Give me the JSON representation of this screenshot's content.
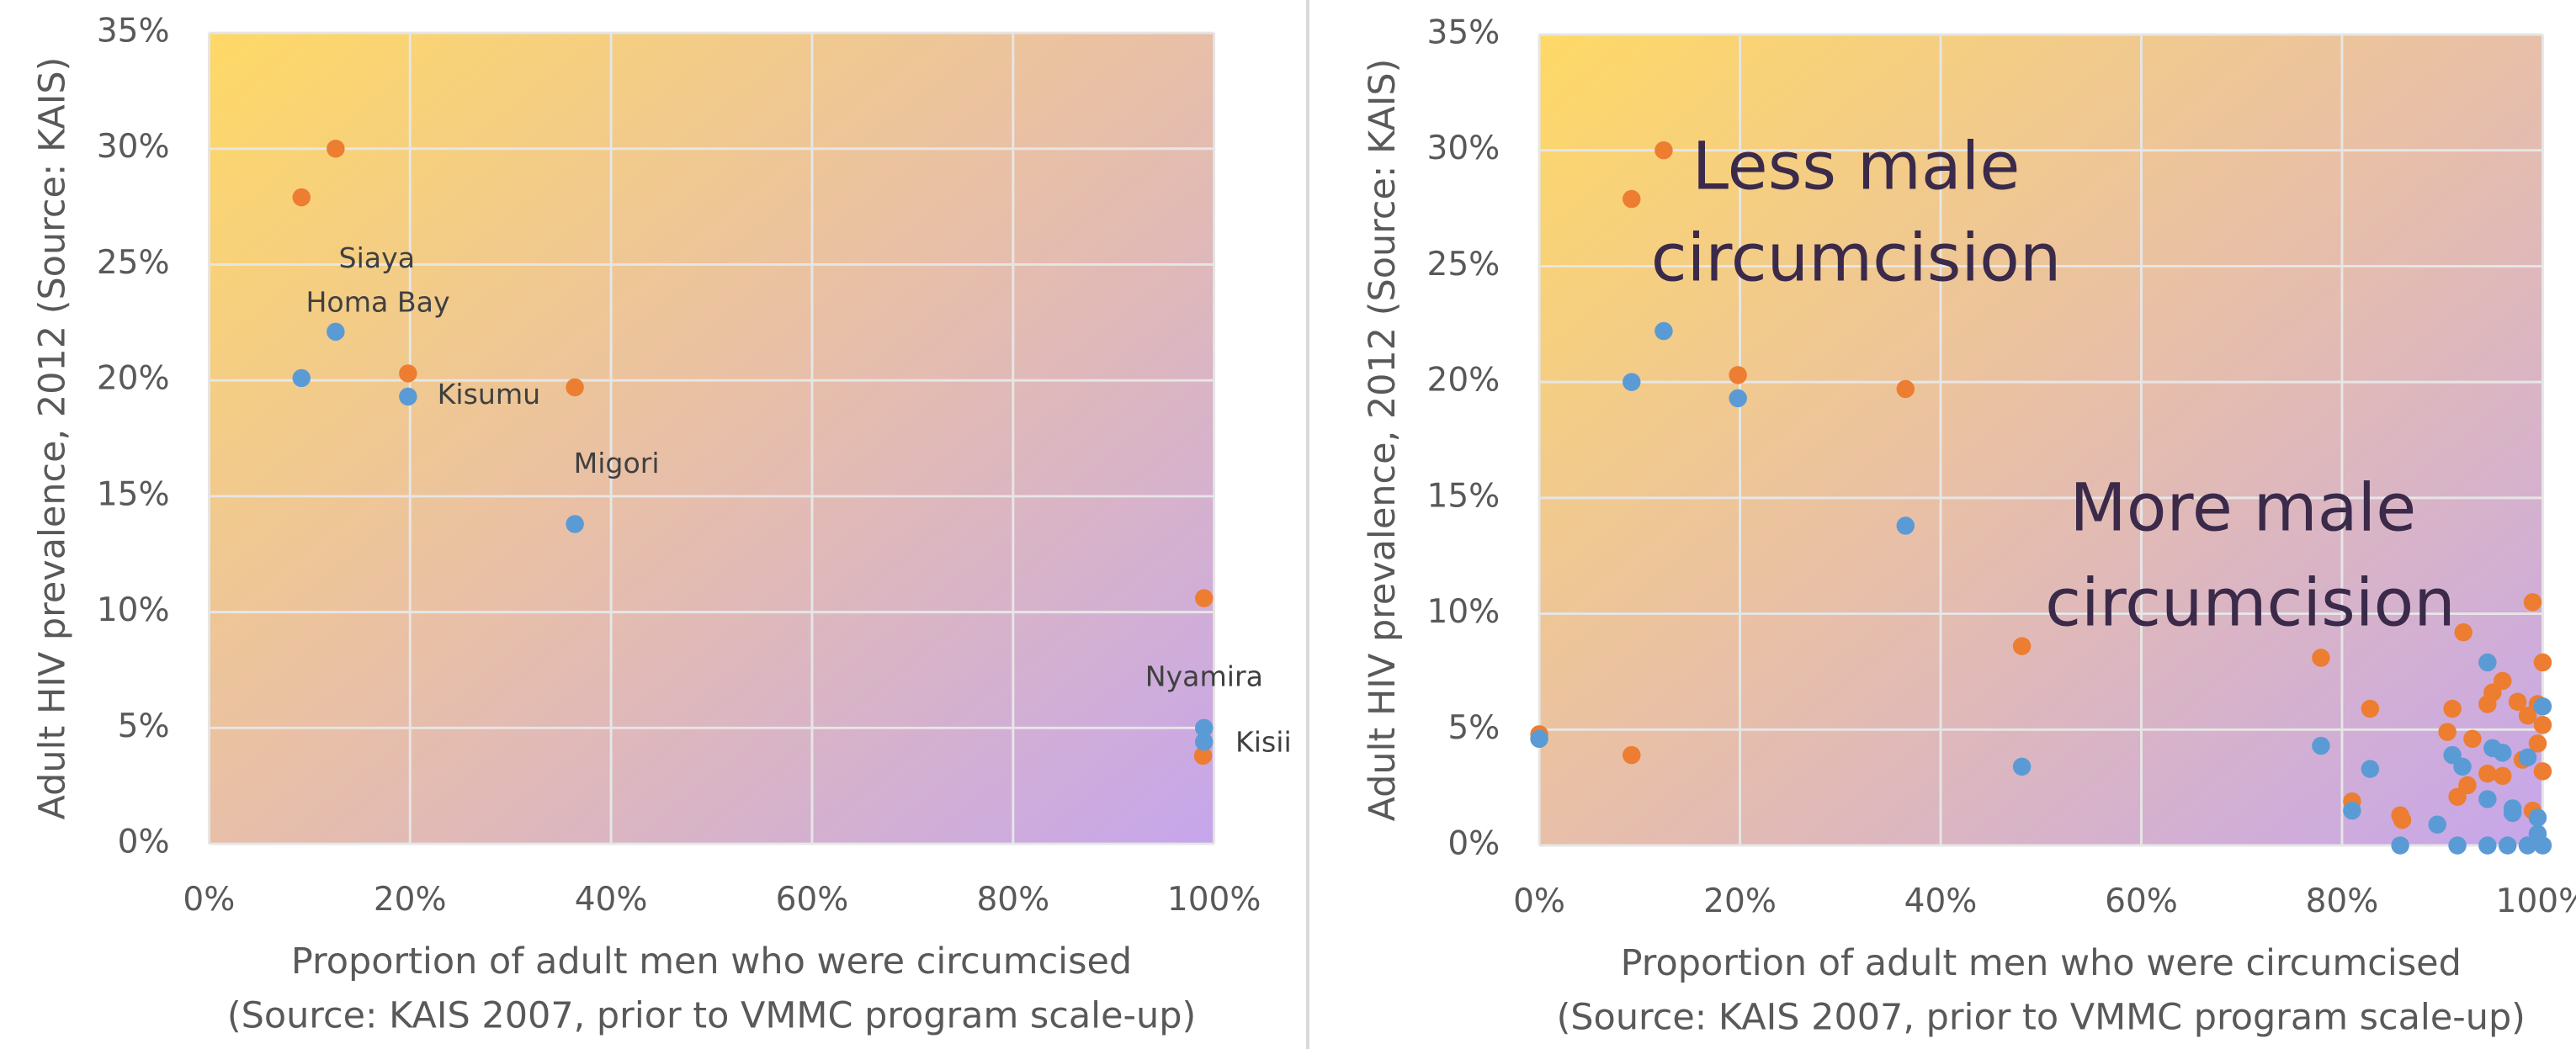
{
  "chart_data": [
    {
      "type": "scatter",
      "ylabel": "Adult HIV prevalence, 2012 (Source: KAIS)",
      "xlabel": [
        "Proportion of adult men who were circumcised",
        "(Source: KAIS 2007, prior to VMMC program scale-up)"
      ],
      "xlim": [
        0,
        100
      ],
      "ylim": [
        0,
        35
      ],
      "xticks": [
        {
          "value": 0,
          "label": "0%"
        },
        {
          "value": 20,
          "label": "20%"
        },
        {
          "value": 40,
          "label": "40%"
        },
        {
          "value": 60,
          "label": "60%"
        },
        {
          "value": 80,
          "label": "80%"
        },
        {
          "value": 100,
          "label": "100%"
        }
      ],
      "yticks": [
        {
          "value": 0,
          "label": "0%"
        },
        {
          "value": 5,
          "label": "5%"
        },
        {
          "value": 10,
          "label": "10%"
        },
        {
          "value": 15,
          "label": "15%"
        },
        {
          "value": 20,
          "label": "20%"
        },
        {
          "value": 25,
          "label": "25%"
        },
        {
          "value": 30,
          "label": "30%"
        },
        {
          "value": 35,
          "label": "35%"
        }
      ],
      "grid": true,
      "series": [
        {
          "color": "#ed7d31",
          "x": [
            9.2,
            12.6,
            19.8,
            36.4,
            99,
            98.9
          ],
          "values": [
            27.9,
            30.0,
            20.3,
            19.7,
            10.6,
            3.8
          ]
        },
        {
          "color": "#5b9bd5",
          "x": [
            9.2,
            12.6,
            19.8,
            36.4,
            99,
            99
          ],
          "values": [
            20.1,
            22.1,
            19.3,
            13.8,
            5.0,
            4.4
          ]
        }
      ],
      "annotations": [
        "Siaya",
        "Homa Bay",
        "Kisumu",
        "Migori",
        "Nyamira",
        "Kisii"
      ]
    },
    {
      "type": "scatter",
      "ylabel": "Adult HIV prevalence, 2012 (Source: KAIS)",
      "xlabel": [
        "Proportion of adult men who were circumcised",
        "(Source: KAIS 2007, prior to VMMC program scale-up)"
      ],
      "xlim": [
        0,
        100
      ],
      "ylim": [
        0,
        35
      ],
      "xticks": [
        {
          "value": 0,
          "label": "0%"
        },
        {
          "value": 20,
          "label": "20%"
        },
        {
          "value": 40,
          "label": "40%"
        },
        {
          "value": 60,
          "label": "60%"
        },
        {
          "value": 80,
          "label": "80%"
        },
        {
          "value": 100,
          "label": "100%"
        }
      ],
      "yticks": [
        {
          "value": 0,
          "label": "0%"
        },
        {
          "value": 5,
          "label": "5%"
        },
        {
          "value": 10,
          "label": "10%"
        },
        {
          "value": 15,
          "label": "15%"
        },
        {
          "value": 20,
          "label": "20%"
        },
        {
          "value": 25,
          "label": "25%"
        },
        {
          "value": 30,
          "label": "30%"
        },
        {
          "value": 35,
          "label": "35%"
        }
      ],
      "grid": true,
      "series": [
        {
          "color": "#ed7d31",
          "x": [
            0,
            9.2,
            12.4,
            9.2,
            19.8,
            36.5,
            48.1,
            77.9,
            82.8,
            81,
            85.8,
            92.1,
            90.5,
            91,
            93,
            94.5,
            95,
            96,
            97.5,
            98.5,
            99,
            99.5,
            100,
            100,
            99.5,
            98,
            96,
            94.5,
            92.5,
            91.5,
            86,
            99,
            100
          ],
          "values": [
            4.8,
            27.9,
            30.0,
            3.9,
            20.3,
            19.7,
            8.6,
            8.1,
            5.9,
            1.9,
            1.3,
            9.2,
            4.9,
            5.9,
            4.6,
            6.1,
            6.6,
            7.1,
            6.2,
            5.6,
            10.5,
            6.1,
            7.9,
            5.2,
            4.4,
            3.7,
            3.0,
            3.1,
            2.6,
            2.1,
            1.1,
            1.5,
            3.2
          ]
        },
        {
          "color": "#5b9bd5",
          "x": [
            0,
            9.2,
            12.4,
            19.8,
            36.5,
            48.1,
            77.9,
            82.8,
            81,
            85.8,
            89.5,
            91,
            92,
            94.5,
            95,
            96,
            97,
            98.5,
            99.5,
            100,
            91.5,
            94.5,
            96.5,
            98.5,
            100,
            94.5,
            97,
            99.5
          ],
          "values": [
            4.6,
            20.0,
            22.2,
            19.3,
            13.8,
            3.4,
            4.3,
            3.3,
            1.5,
            0,
            0.9,
            3.9,
            3.4,
            7.9,
            4.2,
            4.0,
            1.6,
            3.8,
            1.2,
            6.0,
            0,
            0,
            0,
            0,
            0,
            2.0,
            1.4,
            0.5
          ]
        }
      ],
      "annotations": [
        "Less male",
        "circumcision",
        "More male",
        "circumcision"
      ]
    }
  ]
}
